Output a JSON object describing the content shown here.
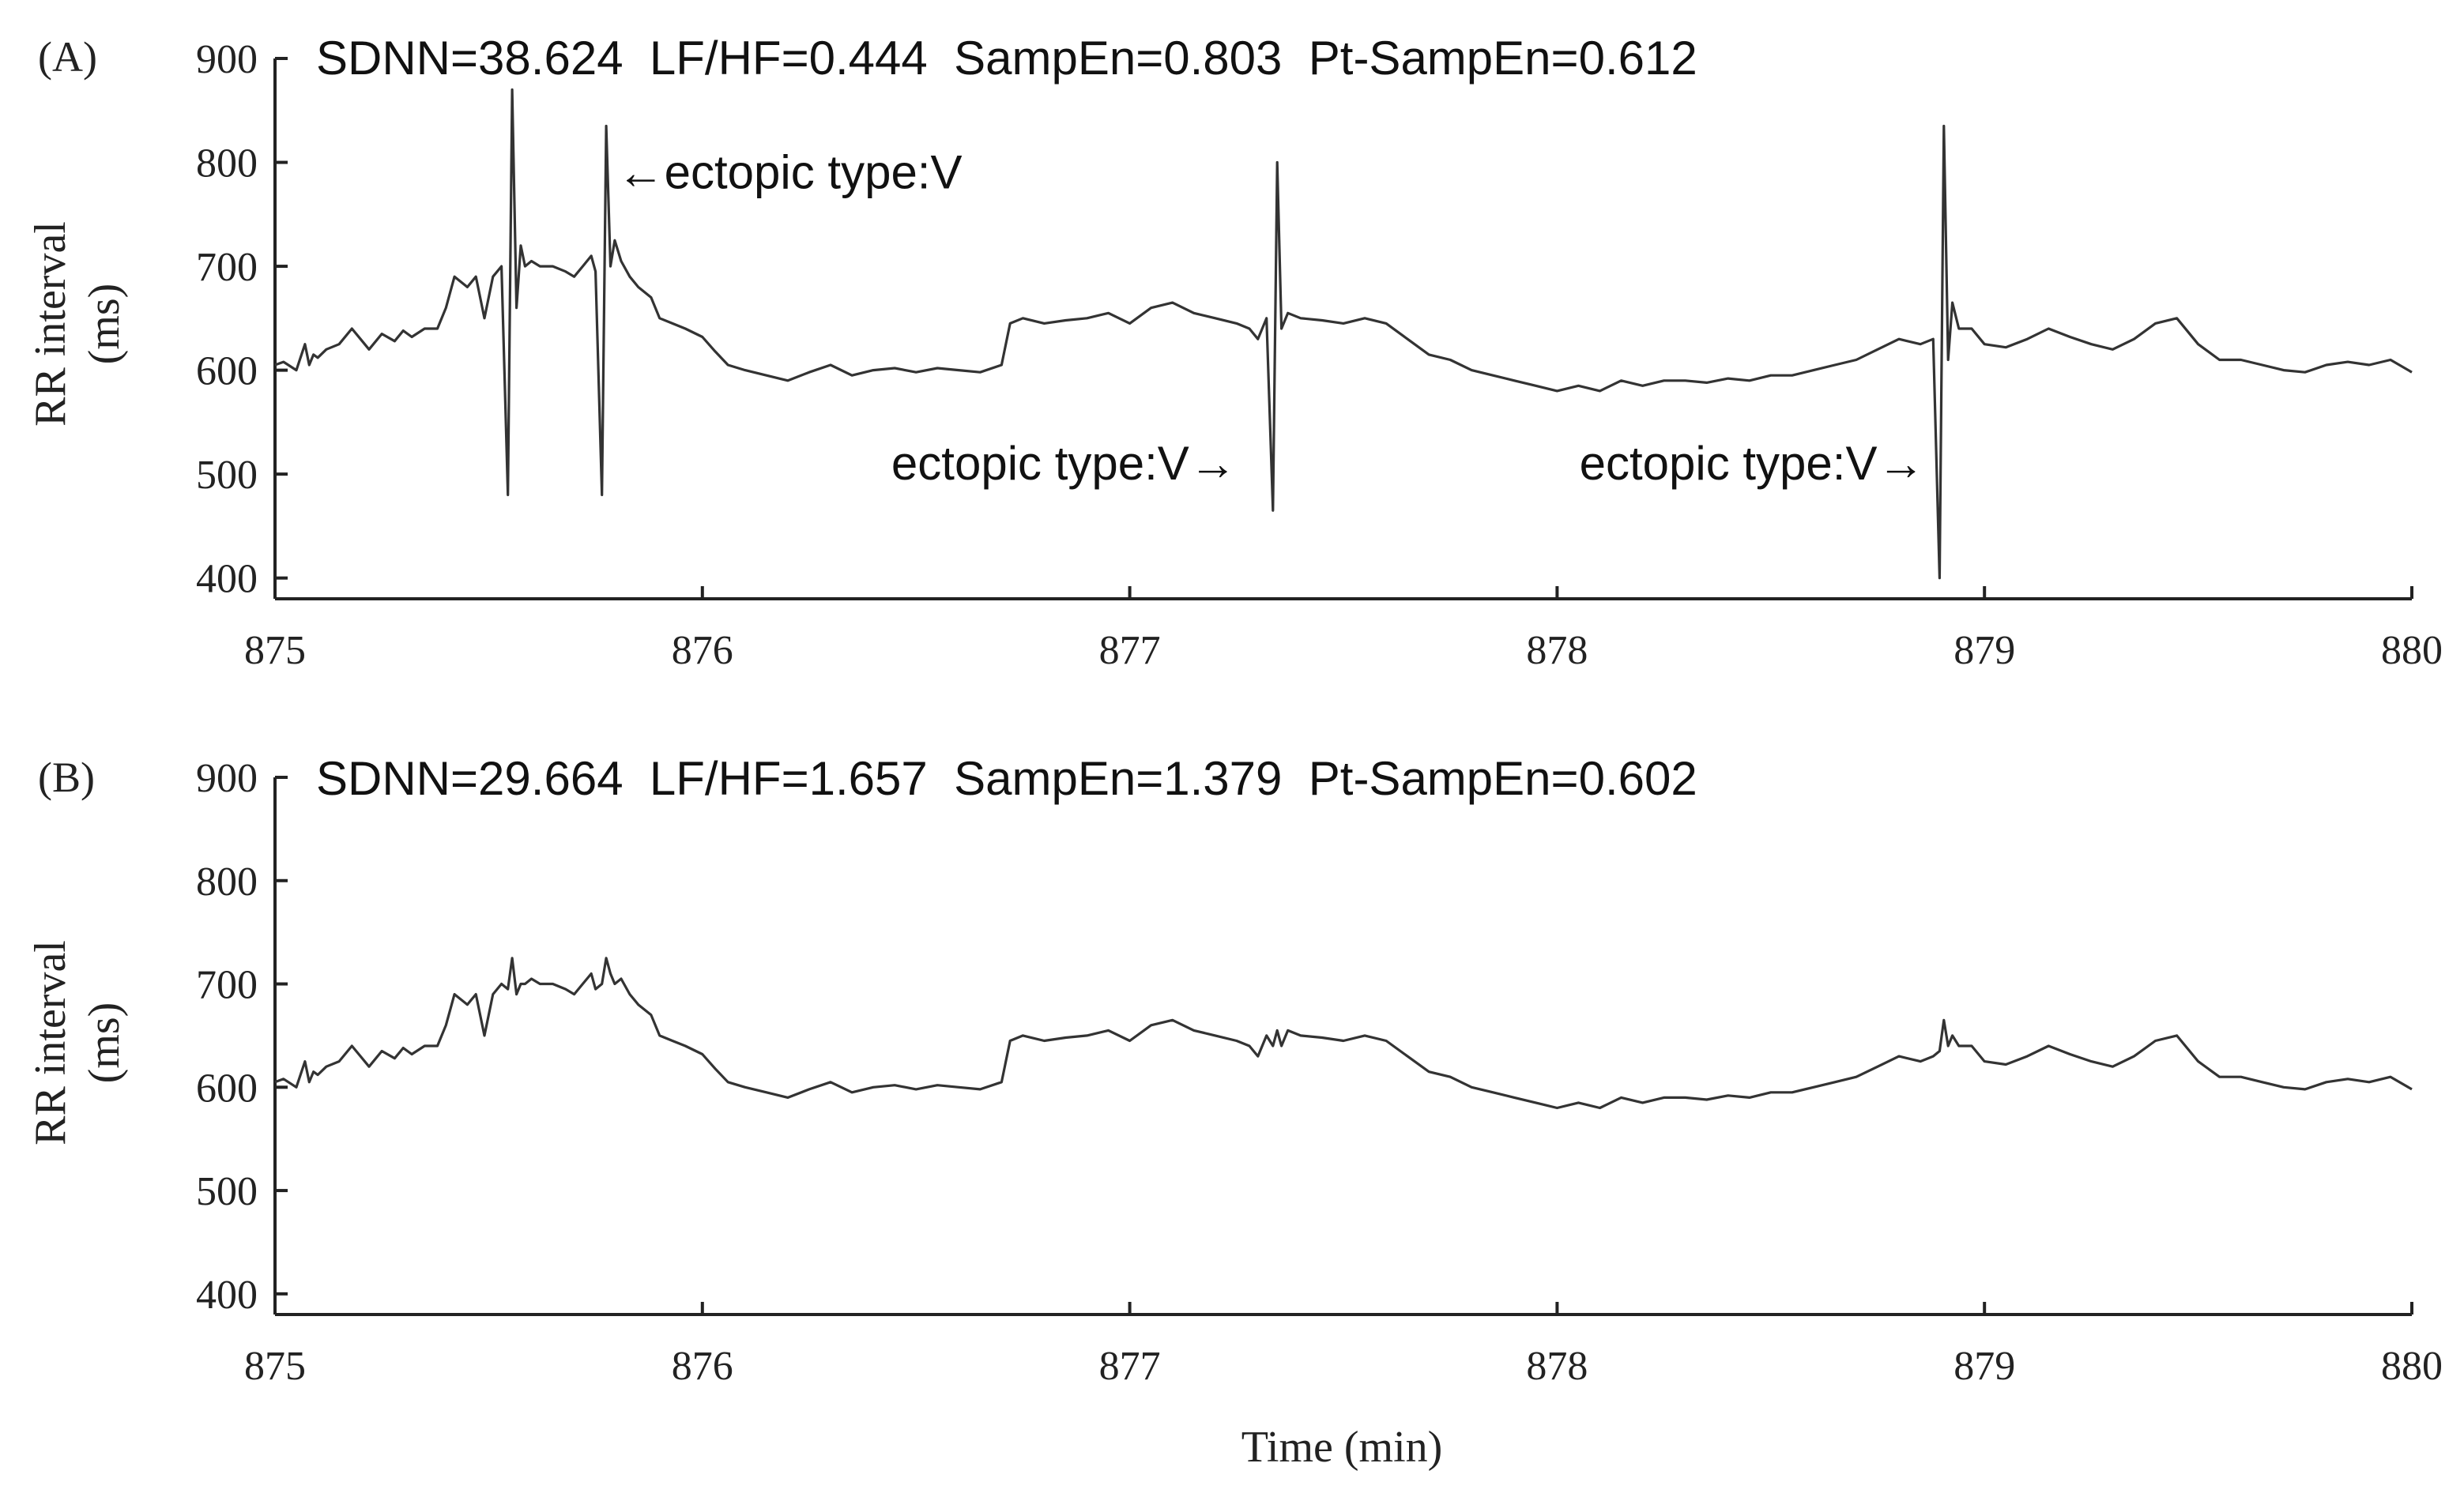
{
  "chart_data": [
    {
      "type": "line",
      "panel_label": "(A)",
      "stats_text": "SDNN=38.624  LF/HF=0.444  SampEn=0.803  Pt-SampEn=0.612",
      "xlabel": "",
      "ylabel": "RR interval",
      "ylabel_unit": "(ms)",
      "xlim": [
        875,
        880
      ],
      "ylim": [
        380,
        900
      ],
      "xticks": [
        875,
        876,
        877,
        878,
        879,
        880
      ],
      "yticks": [
        400,
        500,
        600,
        700,
        800,
        900
      ],
      "grid": false,
      "annotations": [
        {
          "text": "←ectopic type:V",
          "x": 875.8,
          "y": 790,
          "anchor": "start"
        },
        {
          "text": "ectopic type:V→",
          "x": 877.25,
          "y": 510,
          "anchor": "end"
        },
        {
          "text": "ectopic type:V→",
          "x": 878.86,
          "y": 510,
          "anchor": "end"
        }
      ],
      "series": [
        {
          "color": "#333333",
          "x": [
            875.0,
            875.02,
            875.05,
            875.07,
            875.08,
            875.09,
            875.1,
            875.12,
            875.15,
            875.18,
            875.2,
            875.22,
            875.25,
            875.28,
            875.3,
            875.32,
            875.35,
            875.38,
            875.4,
            875.42,
            875.45,
            875.47,
            875.49,
            875.51,
            875.53,
            875.545,
            875.555,
            875.565,
            875.575,
            875.585,
            875.6,
            875.62,
            875.65,
            875.68,
            875.7,
            875.72,
            875.74,
            875.75,
            875.765,
            875.775,
            875.785,
            875.795,
            875.81,
            875.83,
            875.85,
            875.88,
            875.9,
            875.93,
            875.96,
            876.0,
            876.03,
            876.06,
            876.1,
            876.15,
            876.2,
            876.25,
            876.3,
            876.35,
            876.4,
            876.45,
            876.5,
            876.55,
            876.6,
            876.65,
            876.7,
            876.72,
            876.75,
            876.8,
            876.85,
            876.9,
            876.95,
            877.0,
            877.05,
            877.1,
            877.15,
            877.2,
            877.25,
            877.28,
            877.3,
            877.32,
            877.335,
            877.345,
            877.355,
            877.37,
            877.4,
            877.45,
            877.5,
            877.55,
            877.6,
            877.65,
            877.7,
            877.75,
            877.8,
            877.85,
            877.9,
            877.95,
            878.0,
            878.05,
            878.1,
            878.15,
            878.2,
            878.25,
            878.3,
            878.35,
            878.4,
            878.45,
            878.5,
            878.55,
            878.6,
            878.65,
            878.7,
            878.75,
            878.8,
            878.85,
            878.88,
            878.895,
            878.905,
            878.915,
            878.925,
            878.94,
            878.97,
            879.0,
            879.05,
            879.1,
            879.15,
            879.2,
            879.25,
            879.3,
            879.35,
            879.4,
            879.45,
            879.5,
            879.55,
            879.6,
            879.65,
            879.7,
            879.75,
            879.8,
            879.85,
            879.9,
            879.95,
            880.0
          ],
          "y": [
            605,
            608,
            600,
            625,
            605,
            615,
            612,
            620,
            625,
            640,
            630,
            620,
            635,
            628,
            638,
            632,
            640,
            640,
            660,
            690,
            680,
            690,
            650,
            690,
            700,
            480,
            870,
            660,
            720,
            700,
            705,
            700,
            700,
            695,
            690,
            700,
            710,
            695,
            480,
            835,
            700,
            725,
            705,
            690,
            680,
            670,
            650,
            645,
            640,
            632,
            618,
            605,
            600,
            595,
            590,
            598,
            605,
            595,
            600,
            602,
            598,
            602,
            600,
            598,
            605,
            645,
            650,
            645,
            648,
            650,
            655,
            645,
            660,
            665,
            655,
            650,
            645,
            640,
            630,
            650,
            465,
            800,
            640,
            655,
            650,
            648,
            645,
            650,
            645,
            630,
            615,
            610,
            600,
            595,
            590,
            585,
            580,
            585,
            580,
            590,
            585,
            590,
            590,
            588,
            592,
            590,
            595,
            595,
            600,
            605,
            610,
            620,
            630,
            625,
            630,
            400,
            835,
            610,
            665,
            640,
            640,
            625,
            622,
            630,
            640,
            632,
            625,
            620,
            630,
            645,
            650,
            625,
            610,
            610,
            605,
            600,
            598,
            605,
            608,
            605,
            610,
            598
          ]
        }
      ]
    },
    {
      "type": "line",
      "panel_label": "(B)",
      "stats_text": "SDNN=29.664  LF/HF=1.657  SampEn=1.379  Pt-SampEn=0.602",
      "xlabel": "Time (min)",
      "ylabel": "RR interval",
      "ylabel_unit": "(ms)",
      "xlim": [
        875,
        880
      ],
      "ylim": [
        380,
        900
      ],
      "xticks": [
        875,
        876,
        877,
        878,
        879,
        880
      ],
      "yticks": [
        400,
        500,
        600,
        700,
        800,
        900
      ],
      "grid": false,
      "annotations": [],
      "series": [
        {
          "color": "#333333",
          "x": [
            875.0,
            875.02,
            875.05,
            875.07,
            875.08,
            875.09,
            875.1,
            875.12,
            875.15,
            875.18,
            875.2,
            875.22,
            875.25,
            875.28,
            875.3,
            875.32,
            875.35,
            875.38,
            875.4,
            875.42,
            875.45,
            875.47,
            875.49,
            875.51,
            875.53,
            875.545,
            875.555,
            875.565,
            875.575,
            875.585,
            875.6,
            875.62,
            875.65,
            875.68,
            875.7,
            875.72,
            875.74,
            875.75,
            875.765,
            875.775,
            875.785,
            875.795,
            875.81,
            875.83,
            875.85,
            875.88,
            875.9,
            875.93,
            875.96,
            876.0,
            876.03,
            876.06,
            876.1,
            876.15,
            876.2,
            876.25,
            876.3,
            876.35,
            876.4,
            876.45,
            876.5,
            876.55,
            876.6,
            876.65,
            876.7,
            876.72,
            876.75,
            876.8,
            876.85,
            876.9,
            876.95,
            877.0,
            877.05,
            877.1,
            877.15,
            877.2,
            877.25,
            877.28,
            877.3,
            877.32,
            877.335,
            877.345,
            877.355,
            877.37,
            877.4,
            877.45,
            877.5,
            877.55,
            877.6,
            877.65,
            877.7,
            877.75,
            877.8,
            877.85,
            877.9,
            877.95,
            878.0,
            878.05,
            878.1,
            878.15,
            878.2,
            878.25,
            878.3,
            878.35,
            878.4,
            878.45,
            878.5,
            878.55,
            878.6,
            878.65,
            878.7,
            878.75,
            878.8,
            878.85,
            878.88,
            878.895,
            878.905,
            878.915,
            878.925,
            878.94,
            878.97,
            879.0,
            879.05,
            879.1,
            879.15,
            879.2,
            879.25,
            879.3,
            879.35,
            879.4,
            879.45,
            879.5,
            879.55,
            879.6,
            879.65,
            879.7,
            879.75,
            879.8,
            879.85,
            879.9,
            879.95,
            880.0
          ],
          "y": [
            605,
            608,
            600,
            625,
            605,
            615,
            612,
            620,
            625,
            640,
            630,
            620,
            635,
            628,
            638,
            632,
            640,
            640,
            660,
            690,
            680,
            690,
            650,
            690,
            700,
            695,
            725,
            690,
            700,
            700,
            705,
            700,
            700,
            695,
            690,
            700,
            710,
            695,
            700,
            725,
            710,
            700,
            705,
            690,
            680,
            670,
            650,
            645,
            640,
            632,
            618,
            605,
            600,
            595,
            590,
            598,
            605,
            595,
            600,
            602,
            598,
            602,
            600,
            598,
            605,
            645,
            650,
            645,
            648,
            650,
            655,
            645,
            660,
            665,
            655,
            650,
            645,
            640,
            630,
            650,
            640,
            655,
            640,
            655,
            650,
            648,
            645,
            650,
            645,
            630,
            615,
            610,
            600,
            595,
            590,
            585,
            580,
            585,
            580,
            590,
            585,
            590,
            590,
            588,
            592,
            590,
            595,
            595,
            600,
            605,
            610,
            620,
            630,
            625,
            630,
            635,
            665,
            640,
            650,
            640,
            640,
            625,
            622,
            630,
            640,
            632,
            625,
            620,
            630,
            645,
            650,
            625,
            610,
            610,
            605,
            600,
            598,
            605,
            608,
            605,
            610,
            598
          ]
        }
      ]
    }
  ]
}
